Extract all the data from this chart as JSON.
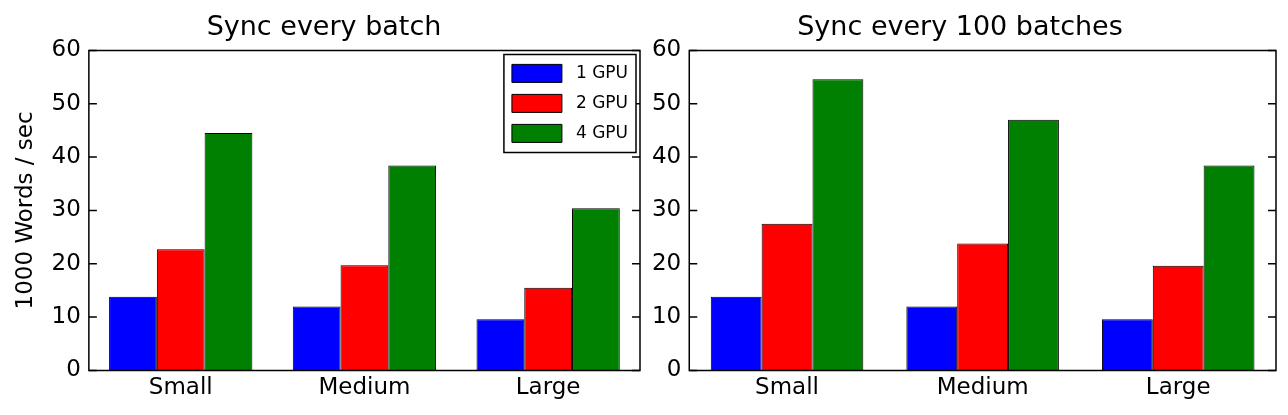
{
  "chart_data": [
    {
      "type": "bar",
      "title": "Sync every batch",
      "ylabel": "1000 Words / sec",
      "categories": [
        "Small",
        "Medium",
        "Large"
      ],
      "series": [
        {
          "name": "1 GPU",
          "color": "#0000ff",
          "values": [
            13.8,
            12.0,
            9.6
          ]
        },
        {
          "name": "2 GPU",
          "color": "#ff0000",
          "values": [
            22.7,
            19.7,
            15.5
          ]
        },
        {
          "name": "4 GPU",
          "color": "#008000",
          "values": [
            44.5,
            38.4,
            30.4
          ]
        }
      ],
      "ylim": [
        0,
        60
      ],
      "yticks": [
        0,
        10,
        20,
        30,
        40,
        50,
        60
      ],
      "grid": false,
      "legend": "top right"
    },
    {
      "type": "bar",
      "title": "Sync every 100 batches",
      "categories": [
        "Small",
        "Medium",
        "Large"
      ],
      "series": [
        {
          "color": "#0000ff",
          "values": [
            13.8,
            12.0,
            9.6
          ]
        },
        {
          "color": "#ff0000",
          "values": [
            27.5,
            23.8,
            19.6
          ]
        },
        {
          "color": "#008000",
          "values": [
            54.6,
            47.0,
            38.4
          ]
        }
      ],
      "ylim": [
        0,
        60
      ],
      "yticks": [
        0,
        10,
        20,
        30,
        40,
        50,
        60
      ],
      "grid": false,
      "legend": false
    }
  ]
}
